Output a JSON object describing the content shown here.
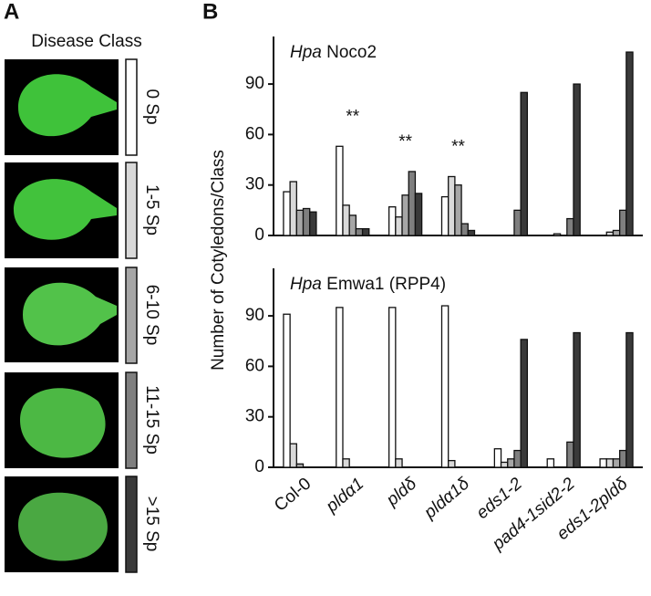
{
  "panel_labels": [
    "A",
    "B"
  ],
  "legend_title": "Disease Class",
  "ylabel": "Number of Cotyledons/Class",
  "chart_data": [
    {
      "type": "bar",
      "title_species": "Hpa",
      "title": "Noco2",
      "ylim": [
        0,
        115
      ],
      "yticks": [
        0,
        30,
        60,
        90
      ],
      "annotations": [
        null,
        "**",
        "**",
        "**",
        null,
        null,
        null
      ],
      "series": [
        {
          "name": "0 Sp",
          "color": "#ffffff",
          "values": [
            26,
            53,
            17,
            23,
            0,
            0,
            0
          ]
        },
        {
          "name": "1-5 Sp",
          "color": "#d9d9d9",
          "values": [
            32,
            18,
            11,
            35,
            0,
            1,
            2
          ]
        },
        {
          "name": "6-10 Sp",
          "color": "#a6a6a6",
          "values": [
            15,
            12,
            24,
            30,
            0,
            0,
            3
          ]
        },
        {
          "name": "11-15 Sp",
          "color": "#7f7f7f",
          "values": [
            16,
            4,
            38,
            7,
            15,
            10,
            15
          ]
        },
        {
          "name": ">15 Sp",
          "color": "#3a3a3a",
          "values": [
            14,
            4,
            25,
            3,
            85,
            90,
            109
          ]
        }
      ]
    },
    {
      "type": "bar",
      "title_species": "Hpa",
      "title": "Emwa1 (RPP4)",
      "ylim": [
        0,
        115
      ],
      "yticks": [
        0,
        30,
        60,
        90
      ],
      "categories": [
        "Col-0",
        "pldα1",
        "pldδ",
        "pldα1δ",
        "eds1-2",
        "pad4-1sid2-2",
        "eds1-2pldδ"
      ],
      "series": [
        {
          "color": "#ffffff",
          "values": [
            91,
            95,
            95,
            96,
            11,
            5,
            5
          ]
        },
        {
          "color": "#d9d9d9",
          "values": [
            14,
            5,
            5,
            4,
            3,
            0,
            5
          ]
        },
        {
          "color": "#a6a6a6",
          "values": [
            2,
            0,
            0,
            0,
            5,
            0,
            5
          ]
        },
        {
          "color": "#7f7f7f",
          "values": [
            0,
            0,
            0,
            0,
            10,
            15,
            10
          ]
        },
        {
          "color": "#3a3a3a",
          "values": [
            0,
            0,
            0,
            0,
            76,
            80,
            80
          ]
        }
      ]
    }
  ]
}
